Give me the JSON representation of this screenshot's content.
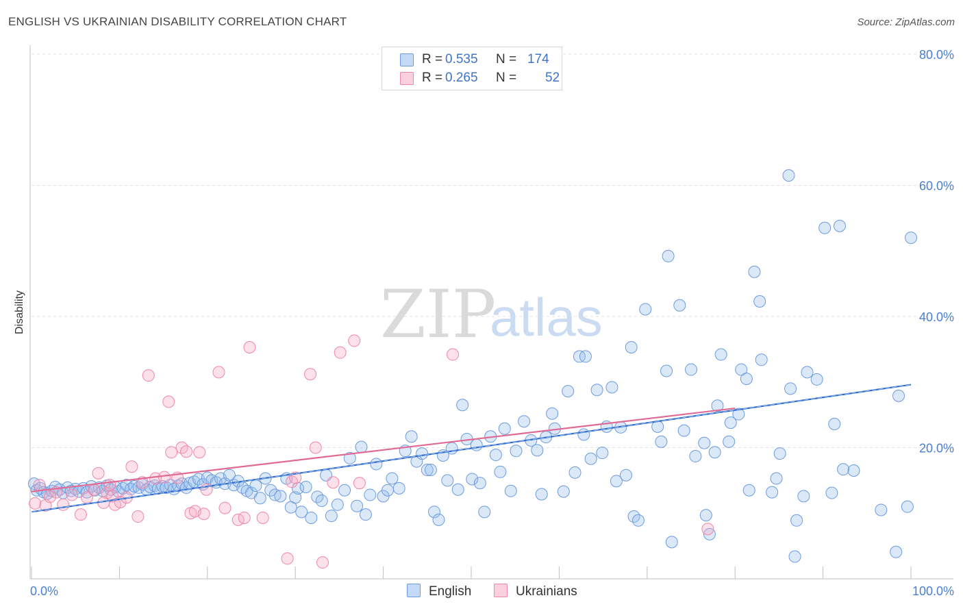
{
  "header": {
    "title": "ENGLISH VS UKRAINIAN DISABILITY CORRELATION CHART",
    "source": "Source: ZipAtlas.com"
  },
  "watermark": {
    "zip": "ZIP",
    "atlas": "atlas"
  },
  "legend": {
    "rows": [
      {
        "r_label": "R =",
        "r_value": "0.535",
        "n_label": "N =",
        "n_value": "174",
        "color": "#6b9be0"
      },
      {
        "r_label": "R =",
        "r_value": "0.265",
        "n_label": "N =",
        "n_value": "52",
        "color": "#ef86a7"
      }
    ]
  },
  "bottom_legend": [
    {
      "label": "English",
      "color": "#6b9be0"
    },
    {
      "label": "Ukrainians",
      "color": "#ef86a7"
    }
  ],
  "chart_data": {
    "type": "scatter",
    "title": "ENGLISH VS UKRAINIAN DISABILITY CORRELATION CHART",
    "xlabel": "",
    "ylabel": "Disability",
    "xlim": [
      0,
      100
    ],
    "ylim": [
      0,
      80
    ],
    "x_tick_labels": [
      "0.0%",
      "100.0%"
    ],
    "y_ticks": [
      20,
      40,
      60,
      80
    ],
    "y_tick_labels": [
      "20.0%",
      "40.0%",
      "60.0%",
      "80.0%"
    ],
    "grid": true,
    "legend_position": "top-center",
    "series": [
      {
        "name": "English",
        "color": "#6b9be0",
        "trend": {
          "x": [
            0,
            100
          ],
          "y": [
            10.2,
            29.6
          ]
        },
        "points": [
          [
            0.3,
            14.5
          ],
          [
            0.6,
            13.5
          ],
          [
            1.0,
            13.8
          ],
          [
            1.4,
            13.2
          ],
          [
            1.8,
            13.0
          ],
          [
            2.3,
            13.4
          ],
          [
            2.7,
            14.0
          ],
          [
            3.2,
            13.6
          ],
          [
            3.6,
            13.1
          ],
          [
            4.1,
            13.9
          ],
          [
            4.5,
            13.4
          ],
          [
            5.0,
            13.7
          ],
          [
            5.4,
            13.3
          ],
          [
            5.9,
            13.8
          ],
          [
            6.3,
            13.2
          ],
          [
            6.8,
            14.1
          ],
          [
            7.2,
            13.5
          ],
          [
            7.7,
            13.9
          ],
          [
            8.1,
            13.4
          ],
          [
            8.6,
            14.2
          ],
          [
            9.0,
            13.6
          ],
          [
            9.5,
            14.0
          ],
          [
            9.9,
            13.3
          ],
          [
            10.4,
            13.8
          ],
          [
            10.8,
            14.3
          ],
          [
            11.3,
            13.7
          ],
          [
            11.7,
            14.1
          ],
          [
            12.2,
            13.9
          ],
          [
            12.6,
            14.4
          ],
          [
            13.1,
            13.6
          ],
          [
            13.5,
            14.0
          ],
          [
            14.0,
            14.2
          ],
          [
            14.4,
            13.8
          ],
          [
            14.9,
            14.1
          ],
          [
            15.3,
            13.9
          ],
          [
            15.8,
            14.3
          ],
          [
            16.2,
            13.7
          ],
          [
            16.7,
            14.2
          ],
          [
            17.1,
            14.5
          ],
          [
            17.6,
            13.9
          ],
          [
            18.0,
            14.6
          ],
          [
            18.5,
            14.8
          ],
          [
            19.0,
            15.2
          ],
          [
            19.5,
            14.4
          ],
          [
            20.0,
            15.4
          ],
          [
            20.5,
            15.0
          ],
          [
            21.0,
            14.7
          ],
          [
            21.5,
            15.3
          ],
          [
            22.0,
            14.5
          ],
          [
            22.5,
            15.8
          ],
          [
            23.0,
            14.3
          ],
          [
            23.5,
            14.9
          ],
          [
            24.0,
            13.9
          ],
          [
            24.5,
            13.4
          ],
          [
            25.0,
            13.1
          ],
          [
            25.5,
            14.2
          ],
          [
            26.0,
            12.3
          ],
          [
            26.6,
            15.3
          ],
          [
            27.2,
            13.5
          ],
          [
            27.7,
            12.8
          ],
          [
            28.3,
            12.6
          ],
          [
            29.0,
            15.3
          ],
          [
            29.5,
            10.9
          ],
          [
            30.0,
            12.4
          ],
          [
            30.3,
            13.8
          ],
          [
            30.7,
            10.2
          ],
          [
            31.2,
            14.0
          ],
          [
            31.8,
            9.3
          ],
          [
            32.5,
            12.5
          ],
          [
            33.0,
            11.9
          ],
          [
            33.5,
            15.8
          ],
          [
            34.1,
            9.6
          ],
          [
            34.8,
            11.3
          ],
          [
            35.6,
            13.5
          ],
          [
            36.2,
            18.4
          ],
          [
            37.0,
            11.1
          ],
          [
            37.5,
            20.1
          ],
          [
            38.0,
            9.8
          ],
          [
            38.5,
            12.8
          ],
          [
            39.2,
            17.5
          ],
          [
            40.0,
            12.6
          ],
          [
            40.5,
            13.5
          ],
          [
            41.0,
            15.3
          ],
          [
            41.8,
            13.8
          ],
          [
            42.5,
            19.5
          ],
          [
            43.2,
            21.7
          ],
          [
            43.8,
            17.9
          ],
          [
            44.4,
            19.1
          ],
          [
            45.0,
            16.6
          ],
          [
            45.4,
            16.6
          ],
          [
            45.8,
            10.2
          ],
          [
            46.3,
            9.0
          ],
          [
            46.8,
            18.8
          ],
          [
            47.3,
            15.0
          ],
          [
            47.8,
            19.9
          ],
          [
            48.5,
            13.6
          ],
          [
            49.0,
            26.5
          ],
          [
            49.5,
            21.3
          ],
          [
            50.1,
            15.2
          ],
          [
            50.6,
            20.4
          ],
          [
            51.0,
            14.6
          ],
          [
            51.5,
            10.2
          ],
          [
            52.2,
            21.7
          ],
          [
            52.8,
            18.9
          ],
          [
            53.3,
            16.3
          ],
          [
            53.8,
            22.9
          ],
          [
            54.5,
            13.4
          ],
          [
            55.1,
            19.5
          ],
          [
            56.0,
            24.0
          ],
          [
            56.8,
            21.1
          ],
          [
            57.5,
            19.6
          ],
          [
            58.0,
            12.9
          ],
          [
            58.5,
            21.6
          ],
          [
            59.2,
            25.2
          ],
          [
            59.5,
            22.9
          ],
          [
            60.5,
            13.3
          ],
          [
            61.0,
            28.6
          ],
          [
            61.8,
            16.2
          ],
          [
            62.3,
            33.9
          ],
          [
            62.8,
            22.0
          ],
          [
            63.0,
            33.9
          ],
          [
            63.6,
            18.3
          ],
          [
            64.3,
            28.8
          ],
          [
            64.9,
            19.2
          ],
          [
            65.4,
            23.2
          ],
          [
            66.0,
            29.2
          ],
          [
            66.5,
            14.9
          ],
          [
            67.0,
            23.1
          ],
          [
            67.6,
            15.8
          ],
          [
            68.2,
            35.3
          ],
          [
            68.5,
            9.5
          ],
          [
            69.0,
            8.9
          ],
          [
            69.8,
            41.1
          ],
          [
            71.2,
            23.2
          ],
          [
            71.6,
            20.9
          ],
          [
            72.2,
            31.7
          ],
          [
            72.4,
            49.2
          ],
          [
            72.8,
            5.6
          ],
          [
            73.7,
            41.7
          ],
          [
            74.2,
            22.6
          ],
          [
            75.0,
            31.9
          ],
          [
            75.5,
            18.7
          ],
          [
            76.5,
            20.7
          ],
          [
            76.7,
            9.7
          ],
          [
            77.1,
            6.8
          ],
          [
            77.7,
            19.3
          ],
          [
            78.0,
            26.4
          ],
          [
            78.4,
            34.2
          ],
          [
            79.3,
            20.9
          ],
          [
            79.5,
            23.8
          ],
          [
            80.4,
            25.1
          ],
          [
            80.7,
            31.9
          ],
          [
            81.3,
            30.5
          ],
          [
            81.6,
            13.5
          ],
          [
            82.2,
            46.8
          ],
          [
            82.8,
            42.3
          ],
          [
            83.0,
            33.4
          ],
          [
            84.2,
            13.2
          ],
          [
            84.7,
            15.3
          ],
          [
            85.1,
            19.1
          ],
          [
            86.1,
            61.5
          ],
          [
            86.3,
            29.0
          ],
          [
            86.8,
            3.4
          ],
          [
            87.0,
            8.9
          ],
          [
            87.8,
            12.6
          ],
          [
            88.2,
            31.5
          ],
          [
            89.3,
            30.4
          ],
          [
            90.2,
            53.5
          ],
          [
            91.0,
            13.1
          ],
          [
            91.3,
            23.6
          ],
          [
            91.9,
            53.8
          ],
          [
            92.3,
            16.7
          ],
          [
            93.5,
            16.5
          ],
          [
            96.6,
            10.5
          ],
          [
            98.3,
            4.1
          ],
          [
            98.6,
            27.9
          ],
          [
            99.6,
            11.0
          ],
          [
            100.0,
            52.0
          ]
        ]
      },
      {
        "name": "Ukrainians",
        "color": "#ef86a7",
        "trend": {
          "x": [
            0,
            80
          ],
          "y": [
            13.3,
            26.0
          ]
        },
        "points": [
          [
            0.4,
            11.5
          ],
          [
            0.9,
            14.3
          ],
          [
            1.6,
            11.2
          ],
          [
            2.1,
            12.5
          ],
          [
            2.8,
            13.2
          ],
          [
            3.6,
            11.3
          ],
          [
            4.6,
            12.8
          ],
          [
            5.6,
            9.8
          ],
          [
            6.3,
            12.4
          ],
          [
            7.1,
            13.6
          ],
          [
            7.6,
            16.1
          ],
          [
            8.2,
            11.6
          ],
          [
            8.6,
            13.1
          ],
          [
            8.9,
            14.3
          ],
          [
            9.2,
            12.6
          ],
          [
            9.5,
            11.3
          ],
          [
            10.1,
            11.7
          ],
          [
            10.8,
            12.4
          ],
          [
            11.4,
            17.1
          ],
          [
            12.1,
            9.5
          ],
          [
            12.6,
            14.7
          ],
          [
            13.3,
            31.0
          ],
          [
            14.1,
            15.3
          ],
          [
            15.1,
            15.5
          ],
          [
            15.6,
            27.0
          ],
          [
            15.9,
            19.3
          ],
          [
            16.6,
            15.4
          ],
          [
            17.1,
            20.0
          ],
          [
            17.6,
            19.4
          ],
          [
            18.1,
            10.0
          ],
          [
            18.6,
            10.3
          ],
          [
            19.1,
            19.3
          ],
          [
            19.6,
            9.9
          ],
          [
            19.9,
            13.6
          ],
          [
            21.3,
            31.5
          ],
          [
            22.0,
            10.8
          ],
          [
            23.5,
            9.0
          ],
          [
            24.2,
            9.3
          ],
          [
            24.8,
            35.3
          ],
          [
            26.3,
            9.3
          ],
          [
            29.1,
            3.1
          ],
          [
            29.6,
            14.8
          ],
          [
            30.0,
            15.4
          ],
          [
            31.7,
            31.2
          ],
          [
            32.3,
            20.0
          ],
          [
            33.1,
            2.5
          ],
          [
            34.3,
            14.7
          ],
          [
            35.1,
            34.5
          ],
          [
            36.7,
            36.3
          ],
          [
            37.3,
            14.6
          ],
          [
            47.9,
            34.2
          ],
          [
            76.9,
            7.6
          ]
        ]
      }
    ]
  }
}
